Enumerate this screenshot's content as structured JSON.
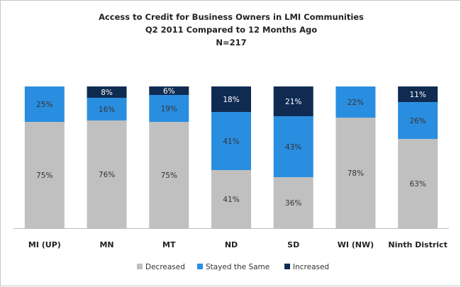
{
  "chart_data": {
    "type": "bar",
    "stacked": true,
    "title": [
      "Access to Credit for Business Owners in LMI Communities",
      "Q2 2011 Compared to 12 Months Ago",
      "N=217"
    ],
    "categories": [
      "MI (UP)",
      "MN",
      "MT",
      "ND",
      "SD",
      "WI (NW)",
      "Ninth District"
    ],
    "series": [
      {
        "name": "Decreased",
        "color": "#c0c0c0",
        "values": [
          75,
          76,
          75,
          41,
          36,
          78,
          63
        ],
        "labels": [
          "75%",
          "76%",
          "75%",
          "41%",
          "36%",
          "78%",
          "63%"
        ]
      },
      {
        "name": "Stayed the Same",
        "color": "#2a8ee0",
        "values": [
          25,
          16,
          19,
          41,
          43,
          22,
          26
        ],
        "labels": [
          "25%",
          "16%",
          "19%",
          "41%",
          "43%",
          "22%",
          "26%"
        ]
      },
      {
        "name": "Increased",
        "color": "#0f2b52",
        "values": [
          0,
          8,
          6,
          18,
          21,
          0,
          11
        ],
        "labels": [
          "",
          "8%",
          "6%",
          "18%",
          "21%",
          "",
          "11%"
        ]
      }
    ],
    "ylim": [
      0,
      100
    ],
    "grid": false,
    "legend_position": "bottom"
  }
}
